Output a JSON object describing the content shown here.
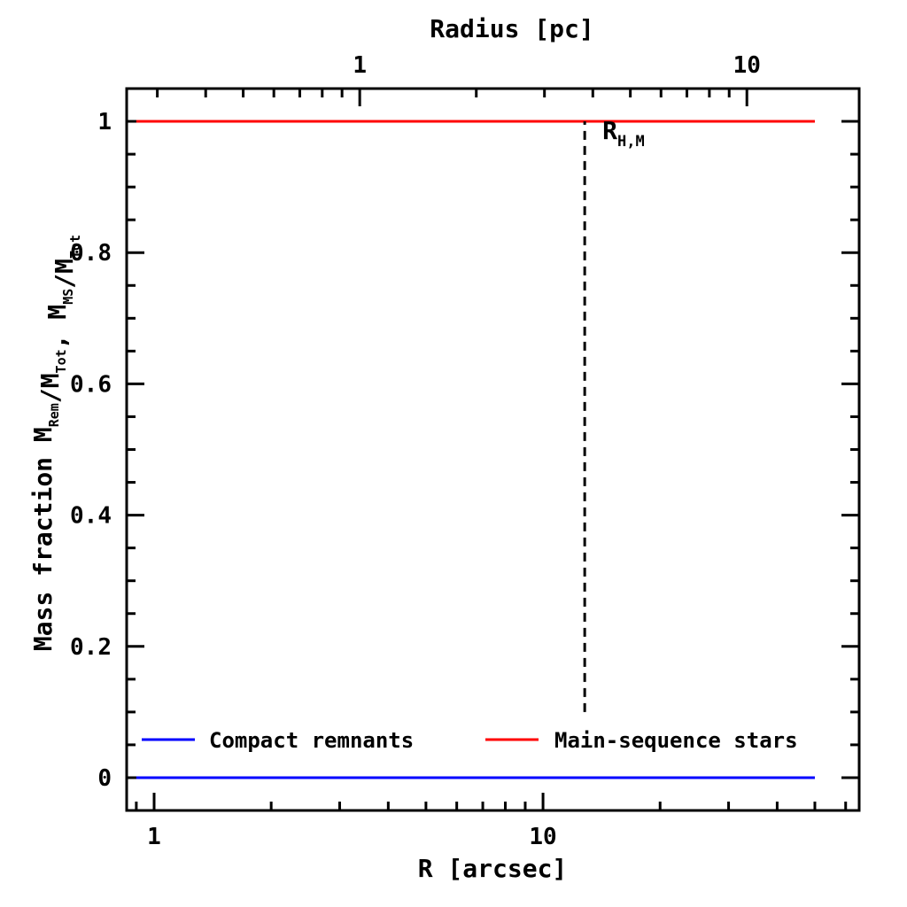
{
  "chart_data": {
    "type": "line",
    "xlabel": "R [arcsec]",
    "xscale": "log",
    "xlim": [
      0.85,
      65
    ],
    "xticks": [
      1,
      10
    ],
    "x_tick_labels": [
      "1",
      "10"
    ],
    "top_axis": {
      "label": "Radius [pc]",
      "scale": "log",
      "range_pc": [
        0.25,
        19.5
      ],
      "ticks": [
        1,
        10
      ],
      "tick_labels": [
        "1",
        "10"
      ]
    },
    "ylabel": {
      "prefix": "Mass fraction",
      "terms": [
        {
          "main": "M",
          "sub": "Rem"
        },
        {
          "main": "/M",
          "sub": "Tot"
        },
        {
          "main": ",  M",
          "sub": "MS"
        },
        {
          "main": "/M",
          "sub": "Tot"
        }
      ]
    },
    "ylim": [
      -0.05,
      1.05
    ],
    "yticks": [
      0,
      0.2,
      0.4,
      0.6,
      0.8,
      1
    ],
    "y_tick_labels": [
      "0",
      "0.2",
      "0.4",
      "0.6",
      "0.8",
      "1"
    ],
    "series": [
      {
        "name": "Compact remnants",
        "color": "#0000ff",
        "x": [
          0.9,
          50
        ],
        "y": [
          0,
          0
        ]
      },
      {
        "name": "Main-sequence stars",
        "color": "#ff0000",
        "x": [
          0.9,
          50
        ],
        "y": [
          1,
          1
        ]
      }
    ],
    "reference_line": {
      "x": 12.8,
      "y_range": [
        0.1,
        1.0
      ],
      "style": "dashed",
      "color": "#000000",
      "label_main": "R",
      "label_sub": "H,M"
    },
    "legend_placement": "bottom"
  }
}
